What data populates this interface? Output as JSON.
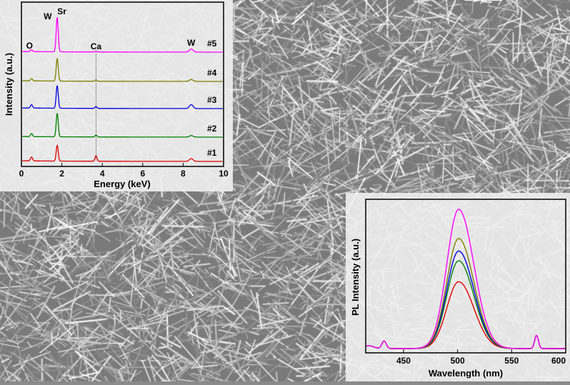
{
  "chart_data": [
    {
      "type": "line",
      "xlabel": "Energy (keV)",
      "ylabel": "Intensity (a.u.)",
      "xlim": [
        0,
        10
      ],
      "x_ticks": [
        "0",
        "2",
        "4",
        "6",
        "8",
        "10"
      ],
      "grid": false,
      "series": [
        {
          "name": "#1",
          "color": "#e00000",
          "peaks": [
            {
              "x": 0.5,
              "h": 0.25
            },
            {
              "x": 1.77,
              "h": 1.0
            },
            {
              "x": 3.69,
              "h": 0.35
            },
            {
              "x": 8.4,
              "h": 0.18
            }
          ]
        },
        {
          "name": "#2",
          "color": "#008000",
          "peaks": [
            {
              "x": 0.5,
              "h": 0.2
            },
            {
              "x": 1.77,
              "h": 1.5
            },
            {
              "x": 3.69,
              "h": 0.12
            },
            {
              "x": 8.4,
              "h": 0.1
            }
          ]
        },
        {
          "name": "#3",
          "color": "#0000e0",
          "peaks": [
            {
              "x": 0.5,
              "h": 0.22
            },
            {
              "x": 1.77,
              "h": 1.45
            },
            {
              "x": 3.69,
              "h": 0.12
            },
            {
              "x": 8.4,
              "h": 0.25
            }
          ]
        },
        {
          "name": "#4",
          "color": "#808000",
          "peaks": [
            {
              "x": 0.5,
              "h": 0.15
            },
            {
              "x": 1.77,
              "h": 1.45
            },
            {
              "x": 3.69,
              "h": 0.08
            },
            {
              "x": 8.4,
              "h": 0.12
            }
          ]
        },
        {
          "name": "#5",
          "color": "#ff00ff",
          "peaks": [
            {
              "x": 0.5,
              "h": 0.12
            },
            {
              "x": 1.77,
              "h": 2.2
            },
            {
              "x": 3.69,
              "h": 0.05
            },
            {
              "x": 8.4,
              "h": 0.2
            }
          ]
        }
      ],
      "annotations": [
        {
          "text": "O",
          "x": 0.4
        },
        {
          "text": "W",
          "x": 1.3
        },
        {
          "text": "Sr",
          "x": 2.0
        },
        {
          "text": "Ca",
          "x": 3.69
        },
        {
          "text": "W",
          "x": 8.4
        }
      ]
    },
    {
      "type": "line",
      "xlabel": "Wavelength (nm)",
      "ylabel": "PL Intensity (a.u.)",
      "xlim": [
        415,
        600
      ],
      "x_ticks": [
        "450",
        "500",
        "550",
        "600"
      ],
      "grid": false,
      "peak_center": 501,
      "side_peaks": [
        432,
        573
      ],
      "series": [
        {
          "color": "#e00000",
          "peak": 0.48
        },
        {
          "color": "#008000",
          "peak": 0.63
        },
        {
          "color": "#0000e0",
          "peak": 0.7
        },
        {
          "color": "#808000",
          "peak": 0.79
        },
        {
          "color": "#ff00ff",
          "peak": 1.0
        }
      ]
    }
  ]
}
